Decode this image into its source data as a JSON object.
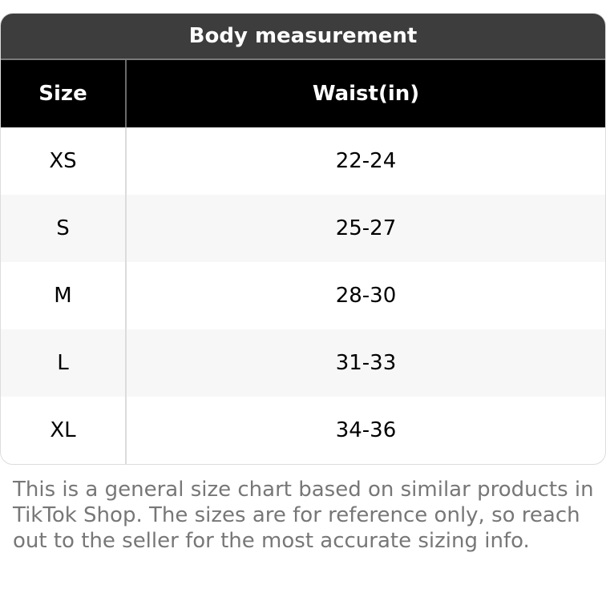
{
  "table": {
    "title": "Body measurement",
    "headers": [
      "Size",
      "Waist(in)"
    ],
    "rows": [
      {
        "size": "XS",
        "waist": "22-24"
      },
      {
        "size": "S",
        "waist": "25-27"
      },
      {
        "size": "M",
        "waist": "28-30"
      },
      {
        "size": "L",
        "waist": "31-33"
      },
      {
        "size": "XL",
        "waist": "34-36"
      }
    ]
  },
  "note": "This is a general size chart based on similar products in TikTok Shop. The sizes are for reference only, so reach out to the seller for the most accurate sizing info."
}
